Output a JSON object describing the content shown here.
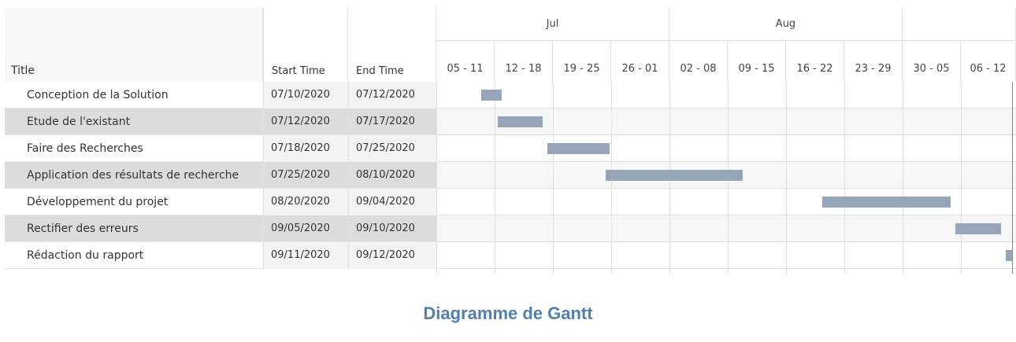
{
  "table": {
    "headers": {
      "title": "Title",
      "start": "Start Time",
      "end": "End Time"
    }
  },
  "chart_data": {
    "type": "gantt",
    "title": "Diagramme de Gantt",
    "axis_start": "2020-07-05",
    "axis_end": "2020-09-12",
    "months": [
      {
        "label": "Jul",
        "start": "2020-07-05",
        "end": "2020-08-01"
      },
      {
        "label": "Aug",
        "start": "2020-08-02",
        "end": "2020-08-29"
      },
      {
        "label": "",
        "start": "2020-08-30",
        "end": "2020-09-12"
      }
    ],
    "weeks": [
      {
        "label": "05 - 11",
        "start": "2020-07-05"
      },
      {
        "label": "12 - 18",
        "start": "2020-07-12"
      },
      {
        "label": "19 - 25",
        "start": "2020-07-19"
      },
      {
        "label": "26 - 01",
        "start": "2020-07-26"
      },
      {
        "label": "02 - 08",
        "start": "2020-08-02"
      },
      {
        "label": "09 - 15",
        "start": "2020-08-09"
      },
      {
        "label": "16 - 22",
        "start": "2020-08-16"
      },
      {
        "label": "23 - 29",
        "start": "2020-08-23"
      },
      {
        "label": "30 - 05",
        "start": "2020-08-30"
      },
      {
        "label": "06 - 12",
        "start": "2020-09-06"
      }
    ],
    "tasks": [
      {
        "title": "Conception de la Solution",
        "start_label": "07/10/2020",
        "end_label": "07/12/2020",
        "start": "2020-07-10",
        "end": "2020-07-12"
      },
      {
        "title": "Etude de l'existant",
        "start_label": "07/12/2020",
        "end_label": "07/17/2020",
        "start": "2020-07-12",
        "end": "2020-07-17"
      },
      {
        "title": "Faire des Recherches",
        "start_label": "07/18/2020",
        "end_label": "07/25/2020",
        "start": "2020-07-18",
        "end": "2020-07-25"
      },
      {
        "title": "Application des résultats de recherche",
        "start_label": "07/25/2020",
        "end_label": "08/10/2020",
        "start": "2020-07-25",
        "end": "2020-08-10"
      },
      {
        "title": "Développement du projet",
        "start_label": "08/20/2020",
        "end_label": "09/04/2020",
        "start": "2020-08-20",
        "end": "2020-09-04"
      },
      {
        "title": "Rectifier des erreurs",
        "start_label": "09/05/2020",
        "end_label": "09/10/2020",
        "start": "2020-09-05",
        "end": "2020-09-10"
      },
      {
        "title": "Rédaction du rapport",
        "start_label": "09/11/2020",
        "end_label": "09/12/2020",
        "start": "2020-09-11",
        "end": "2020-09-12"
      }
    ],
    "today_marker": "2020-09-12",
    "colors": {
      "bar": "#97a5b8",
      "today": "#e35b5b",
      "title": "#4f7fb3"
    }
  }
}
